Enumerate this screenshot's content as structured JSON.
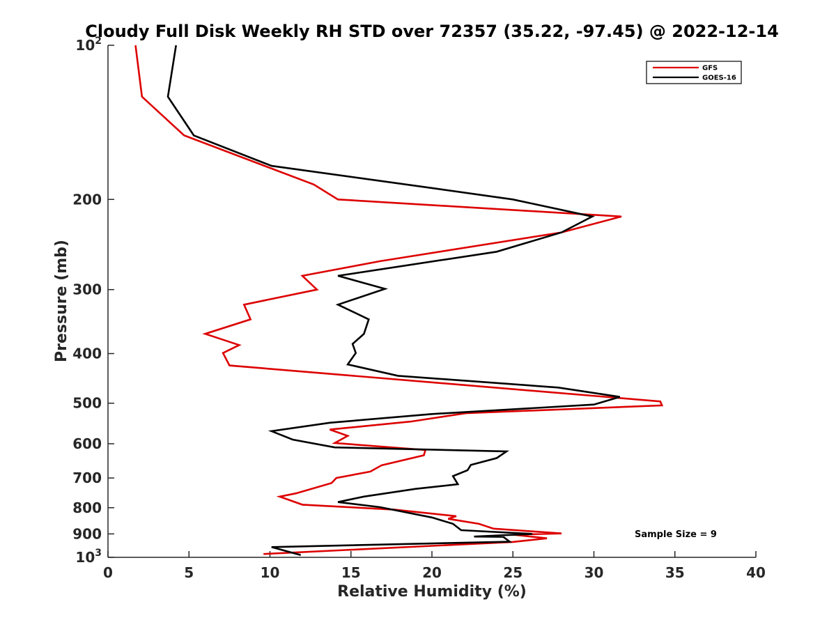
{
  "chart_data": {
    "type": "line",
    "title": "Cloudy Full Disk Weekly RH STD over 72357 (35.22, -97.45) @ 2022-12-14",
    "xlabel": "Relative Humidity (%)",
    "ylabel": "Pressure (mb)",
    "xlim": [
      0,
      40
    ],
    "ylim": [
      1000,
      100
    ],
    "y_scale": "log",
    "y_reversed": true,
    "grid": false,
    "legend_position": "top-right",
    "annotation": "Sample Size = 9",
    "x_ticks": [
      0,
      5,
      10,
      15,
      20,
      25,
      30,
      35,
      40
    ],
    "x_tick_labels": [
      "0",
      "5",
      "10",
      "15",
      "20",
      "25",
      "30",
      "35",
      "40"
    ],
    "y_ticks": [
      {
        "value": 100,
        "label": "10",
        "sup": "2"
      },
      {
        "value": 200,
        "label": "200",
        "sup": ""
      },
      {
        "value": 300,
        "label": "300",
        "sup": ""
      },
      {
        "value": 400,
        "label": "400",
        "sup": ""
      },
      {
        "value": 500,
        "label": "500",
        "sup": ""
      },
      {
        "value": 600,
        "label": "600",
        "sup": ""
      },
      {
        "value": 700,
        "label": "700",
        "sup": ""
      },
      {
        "value": 800,
        "label": "800",
        "sup": ""
      },
      {
        "value": 900,
        "label": "900",
        "sup": ""
      },
      {
        "value": 1000,
        "label": "10",
        "sup": "3"
      }
    ],
    "series": [
      {
        "name": "GFS",
        "color": "#dd0000",
        "points": [
          [
            1.7,
            100
          ],
          [
            2.1,
            126
          ],
          [
            4.7,
            150
          ],
          [
            12.7,
            187
          ],
          [
            14.2,
            200
          ],
          [
            31.7,
            216
          ],
          [
            28.0,
            232
          ],
          [
            16.8,
            264
          ],
          [
            12.0,
            282
          ],
          [
            12.9,
            300
          ],
          [
            8.4,
            321
          ],
          [
            8.8,
            343
          ],
          [
            6.0,
            366
          ],
          [
            8.1,
            385
          ],
          [
            7.1,
            399
          ],
          [
            7.5,
            422
          ],
          [
            34.1,
            496
          ],
          [
            34.2,
            505
          ],
          [
            22.1,
            523
          ],
          [
            18.7,
            543
          ],
          [
            13.7,
            563
          ],
          [
            14.8,
            579
          ],
          [
            14.0,
            598
          ],
          [
            19.6,
            617
          ],
          [
            19.5,
            632
          ],
          [
            16.9,
            661
          ],
          [
            16.2,
            680
          ],
          [
            14.1,
            700
          ],
          [
            13.8,
            716
          ],
          [
            11.6,
            750
          ],
          [
            10.6,
            761
          ],
          [
            12.0,
            789
          ],
          [
            17.7,
            807
          ],
          [
            21.5,
            831
          ],
          [
            21.0,
            841
          ],
          [
            22.9,
            860
          ],
          [
            23.8,
            879
          ],
          [
            28.0,
            898
          ],
          [
            25.0,
            903
          ],
          [
            27.1,
            918
          ],
          [
            25.0,
            933
          ],
          [
            9.6,
            985
          ]
        ]
      },
      {
        "name": "GOES-16",
        "color": "#000000",
        "points": [
          [
            4.2,
            100
          ],
          [
            3.7,
            126
          ],
          [
            5.3,
            150
          ],
          [
            10.1,
            172
          ],
          [
            20.0,
            190
          ],
          [
            25.0,
            200
          ],
          [
            29.9,
            216
          ],
          [
            28.0,
            232
          ],
          [
            24.0,
            253
          ],
          [
            14.2,
            282
          ],
          [
            17.1,
            299
          ],
          [
            14.2,
            321
          ],
          [
            16.1,
            343
          ],
          [
            15.8,
            366
          ],
          [
            15.1,
            383
          ],
          [
            15.3,
            399
          ],
          [
            14.8,
            420
          ],
          [
            17.9,
            442
          ],
          [
            27.8,
            466
          ],
          [
            31.6,
            486
          ],
          [
            30.0,
            503
          ],
          [
            20.0,
            525
          ],
          [
            13.7,
            546
          ],
          [
            10.1,
            567
          ],
          [
            11.4,
            589
          ],
          [
            14.0,
            610
          ],
          [
            24.6,
            621
          ],
          [
            24.0,
            640
          ],
          [
            22.4,
            660
          ],
          [
            22.2,
            676
          ],
          [
            21.3,
            694
          ],
          [
            21.6,
            720
          ],
          [
            19.0,
            735
          ],
          [
            15.8,
            761
          ],
          [
            14.2,
            780
          ],
          [
            16.8,
            798
          ],
          [
            20.0,
            836
          ],
          [
            21.3,
            860
          ],
          [
            21.8,
            885
          ],
          [
            26.2,
            900
          ],
          [
            22.6,
            911
          ],
          [
            24.4,
            912
          ],
          [
            24.8,
            932
          ],
          [
            10.1,
            955
          ],
          [
            11.9,
            990
          ]
        ]
      }
    ]
  }
}
